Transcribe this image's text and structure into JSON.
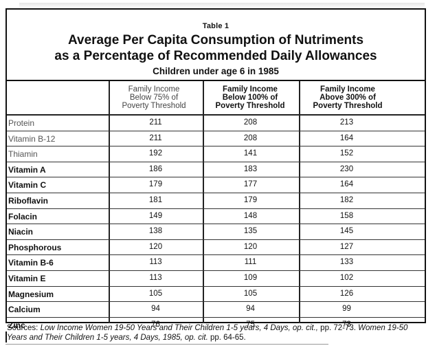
{
  "table": {
    "label": "Table  1",
    "title_line1": "Average Per Capita Consumption of Nutriments",
    "title_line2": "as a Percentage of Recommended Daily Allowances",
    "subtitle": "Children under age 6 in 1985",
    "columns": [
      [
        "Family Income",
        "Below 75% of",
        "Poverty Threshold"
      ],
      [
        "Family Income",
        "Below 100% of",
        "Poverty Threshold"
      ],
      [
        "Family Income",
        "Above 300% of",
        "Poverty Threshold"
      ]
    ],
    "rows": [
      {
        "nutrient": "Protein",
        "v1": "211",
        "v2": "208",
        "v3": "213"
      },
      {
        "nutrient": "Vitamin B-12",
        "v1": "211",
        "v2": "208",
        "v3": "164"
      },
      {
        "nutrient": "Thiamin",
        "v1": "192",
        "v2": "141",
        "v3": "152"
      },
      {
        "nutrient": "Vitamin A",
        "v1": "186",
        "v2": "183",
        "v3": "230"
      },
      {
        "nutrient": "Vitamin C",
        "v1": "179",
        "v2": "177",
        "v3": "164"
      },
      {
        "nutrient": "Riboflavin",
        "v1": "181",
        "v2": "179",
        "v3": "182"
      },
      {
        "nutrient": "Folacin",
        "v1": "149",
        "v2": "148",
        "v3": "158"
      },
      {
        "nutrient": "Niacin",
        "v1": "138",
        "v2": "135",
        "v3": "145"
      },
      {
        "nutrient": "Phosphorous",
        "v1": "120",
        "v2": "120",
        "v3": "127"
      },
      {
        "nutrient": "Vitamin B-6",
        "v1": "113",
        "v2": "111",
        "v3": "133"
      },
      {
        "nutrient": "Vitamin E",
        "v1": "113",
        "v2": "109",
        "v3": "102"
      },
      {
        "nutrient": "Magnesium",
        "v1": "105",
        "v2": "105",
        "v3": "126"
      },
      {
        "nutrient": "Calcium",
        "v1": "94",
        "v2": "94",
        "v3": "99"
      },
      {
        "nutrient": "Zinc",
        "v1": "76",
        "v2": "75",
        "v3": "73"
      }
    ]
  },
  "sources": {
    "label": "Sources: ",
    "ref1": "Low Income Women 19-50 Years and Their Children 1-5 years, 4 Days, op. cit.,",
    "pages1": " pp. 72-73.  ",
    "ref2": "Women 19-50 Years and Their Children 1-5 years, 4 Days, 1985, op. cit.",
    "pages2": "  pp. 64-65."
  }
}
